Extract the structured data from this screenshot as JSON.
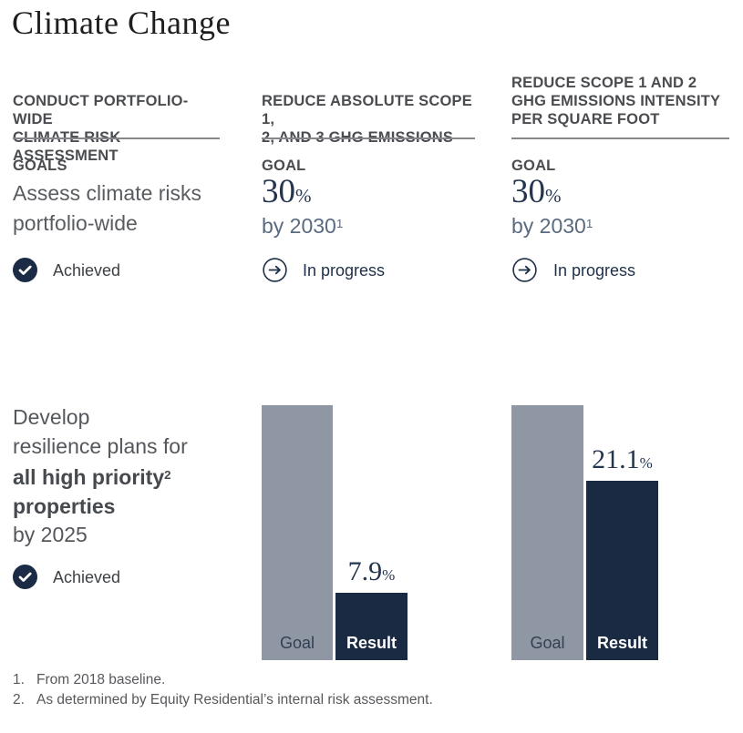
{
  "page": {
    "title": "Climate Change"
  },
  "colors": {
    "navy": "#1a2a42",
    "bar_gray": "#8e97a3",
    "heading_gray": "#4a4c50",
    "body_gray": "#595c60",
    "slate_blue": "#5a6a7f",
    "serif_navy": "#24354f"
  },
  "columns": [
    {
      "header": "CONDUCT PORTFOLIO-WIDE\nCLIMATE RISK ASSESSMENT",
      "goal_label": "GOALS",
      "goal_text": "Assess climate risks\nportfolio-wide",
      "status": "Achieved"
    },
    {
      "header": "REDUCE ABSOLUTE SCOPE 1,\n2, AND 3 GHG EMISSIONS",
      "goal_label": "GOAL",
      "goal_value": "30",
      "goal_unit": "%",
      "goal_by": "by 2030",
      "goal_by_sup": "1",
      "status": "In progress"
    },
    {
      "header": "REDUCE SCOPE 1 AND 2\nGHG EMISSIONS INTENSITY\nPER SQUARE FOOT",
      "goal_label": "GOAL",
      "goal_value": "30",
      "goal_unit": "%",
      "goal_by": "by 2030",
      "goal_by_sup": "1",
      "status": "In progress"
    }
  ],
  "resilience_goal": {
    "line1": "Develop",
    "line2": "resilience plans for",
    "line3_bold": "all high priority",
    "line3_sup": "2",
    "line4_bold": "properties",
    "line5": "by 2025",
    "status": "Achieved"
  },
  "chart_data": [
    {
      "type": "bar",
      "title": "Reduce absolute Scope 1, 2, and 3 GHG emissions — goal vs result",
      "categories": [
        "Goal",
        "Result"
      ],
      "values": [
        30,
        7.9
      ],
      "unit": "%",
      "result_value": "7.9",
      "ylim": [
        0,
        30
      ],
      "bar_colors": [
        "#8e97a3",
        "#1a2a42"
      ]
    },
    {
      "type": "bar",
      "title": "Reduce Scope 1 and 2 GHG emissions intensity per square foot — goal vs result",
      "categories": [
        "Goal",
        "Result"
      ],
      "values": [
        30,
        21.1
      ],
      "unit": "%",
      "result_value": "21.1",
      "ylim": [
        0,
        30
      ],
      "bar_colors": [
        "#8e97a3",
        "#1a2a42"
      ]
    }
  ],
  "footnotes": [
    {
      "num": "1.",
      "text": "From 2018 baseline."
    },
    {
      "num": "2.",
      "text": "As determined by Equity Residential’s internal risk assessment."
    }
  ]
}
